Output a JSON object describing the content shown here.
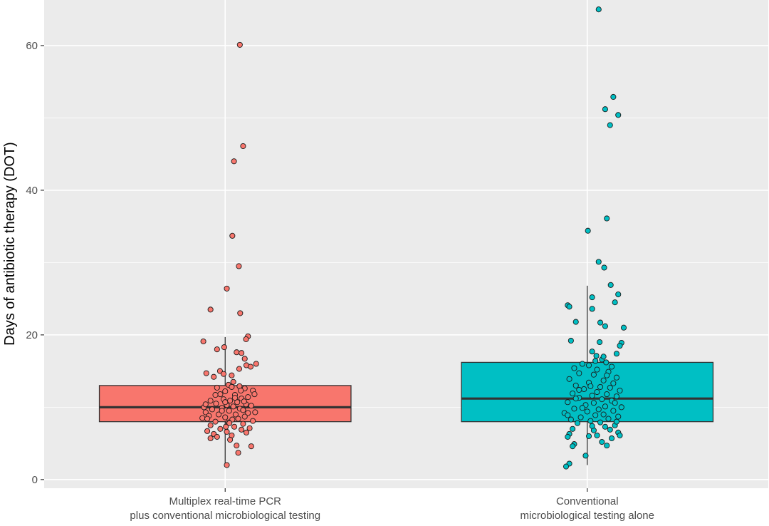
{
  "chart_data": {
    "type": "boxplot",
    "title": "",
    "xlabel": "",
    "ylabel": "Days of antibiotic therapy (DOT)",
    "ylim": [
      -1.2,
      66.3
    ],
    "yticks": [
      0,
      20,
      40,
      60
    ],
    "grid": true,
    "legend": "none",
    "background": "#EBEBEB",
    "groups": [
      {
        "label_lines": [
          "Multiplex real-time PCR",
          "plus conventional microbiological testing"
        ],
        "color": "#F8766D",
        "box": {
          "whisker_low": 2,
          "q1": 8,
          "median": 10,
          "q3": 13,
          "whisker_high": 19.7
        },
        "points": [
          [
            0.45,
            60.1
          ],
          [
            0.55,
            46.1
          ],
          [
            0.27,
            44.0
          ],
          [
            0.22,
            33.7
          ],
          [
            0.42,
            29.5
          ],
          [
            0.05,
            26.4
          ],
          [
            -0.45,
            23.5
          ],
          [
            0.46,
            23.0
          ],
          [
            0.7,
            19.8
          ],
          [
            0.64,
            19.4
          ],
          [
            -0.67,
            19.1
          ],
          [
            -0.25,
            18.0
          ],
          [
            -0.03,
            18.3
          ],
          [
            0.35,
            17.6
          ],
          [
            0.5,
            17.5
          ],
          [
            0.6,
            16.7
          ],
          [
            0.95,
            16.0
          ],
          [
            0.65,
            15.8
          ],
          [
            0.78,
            15.6
          ],
          [
            -0.16,
            15.0
          ],
          [
            0.43,
            15.3
          ],
          [
            -0.05,
            14.6
          ],
          [
            0.2,
            14.4
          ],
          [
            -0.35,
            14.2
          ],
          [
            -0.58,
            14.7
          ],
          [
            0.25,
            13.5
          ],
          [
            0.1,
            13.1
          ],
          [
            -0.25,
            12.7
          ],
          [
            0.44,
            12.9
          ],
          [
            0.6,
            12.6
          ],
          [
            0.85,
            12.3
          ],
          [
            0.0,
            12.2
          ],
          [
            -0.15,
            11.8
          ],
          [
            0.3,
            11.7
          ],
          [
            0.7,
            11.4
          ],
          [
            0.5,
            11.2
          ],
          [
            -0.05,
            11.1
          ],
          [
            0.9,
            11.8
          ],
          [
            -0.45,
            10.9
          ],
          [
            0.15,
            10.9
          ],
          [
            0.37,
            10.7
          ],
          [
            -0.28,
            10.5
          ],
          [
            0.64,
            10.4
          ],
          [
            0.05,
            10.3
          ],
          [
            -0.65,
            10.0
          ],
          [
            0.25,
            10.1
          ],
          [
            0.8,
            10.2
          ],
          [
            -0.1,
            9.9
          ],
          [
            0.45,
            9.8
          ],
          [
            -0.4,
            9.7
          ],
          [
            0.55,
            9.6
          ],
          [
            0.12,
            9.5
          ],
          [
            -0.6,
            9.3
          ],
          [
            0.7,
            9.2
          ],
          [
            -0.2,
            9.0
          ],
          [
            0.32,
            9.0
          ],
          [
            0.92,
            9.3
          ],
          [
            -0.5,
            8.8
          ],
          [
            0.6,
            8.7
          ],
          [
            0.0,
            8.6
          ],
          [
            -0.7,
            8.5
          ],
          [
            0.4,
            8.4
          ],
          [
            0.22,
            8.3
          ],
          [
            0.85,
            8.1
          ],
          [
            -0.3,
            8.0
          ],
          [
            0.1,
            7.9
          ],
          [
            0.55,
            7.7
          ],
          [
            -0.45,
            7.5
          ],
          [
            0.28,
            7.3
          ],
          [
            0.75,
            7.1
          ],
          [
            -0.15,
            7.0
          ],
          [
            0.5,
            6.9
          ],
          [
            -0.55,
            6.7
          ],
          [
            0.05,
            6.6
          ],
          [
            0.65,
            6.5
          ],
          [
            -0.35,
            6.3
          ],
          [
            0.2,
            6.1
          ],
          [
            -0.25,
            5.9
          ],
          [
            -0.45,
            5.7
          ],
          [
            0.15,
            5.5
          ],
          [
            0.8,
            4.6
          ],
          [
            0.4,
            3.7
          ],
          [
            0.35,
            4.7
          ],
          [
            0.05,
            2.0
          ],
          [
            -0.1,
            9.5
          ],
          [
            0.0,
            10.7
          ],
          [
            0.3,
            11.3
          ],
          [
            -0.3,
            11.7
          ],
          [
            0.58,
            10.8
          ],
          [
            0.2,
            12.8
          ],
          [
            -0.55,
            8.4
          ],
          [
            0.02,
            7.3
          ],
          [
            -0.6,
            10.4
          ],
          [
            0.13,
            7.8
          ],
          [
            0.48,
            12.3
          ]
        ]
      },
      {
        "label_lines": [
          "Conventional",
          "microbiological testing alone"
        ],
        "color": "#00BFC4",
        "box": {
          "whisker_low": 2,
          "q1": 8,
          "median": 11.2,
          "q3": 16.2,
          "whisker_high": 26.8
        },
        "points": [
          [
            0.35,
            65.0
          ],
          [
            0.8,
            52.9
          ],
          [
            0.55,
            51.2
          ],
          [
            0.95,
            50.4
          ],
          [
            0.7,
            49.0
          ],
          [
            0.6,
            36.1
          ],
          [
            0.02,
            34.4
          ],
          [
            0.35,
            30.1
          ],
          [
            0.52,
            29.3
          ],
          [
            0.72,
            26.9
          ],
          [
            0.95,
            25.6
          ],
          [
            0.15,
            25.2
          ],
          [
            0.85,
            24.5
          ],
          [
            -0.6,
            24.1
          ],
          [
            -0.55,
            23.9
          ],
          [
            0.15,
            23.6
          ],
          [
            -0.35,
            21.8
          ],
          [
            0.4,
            21.7
          ],
          [
            1.12,
            21.0
          ],
          [
            0.55,
            21.2
          ],
          [
            -0.5,
            19.2
          ],
          [
            0.38,
            19.0
          ],
          [
            1.05,
            18.9
          ],
          [
            1.0,
            18.5
          ],
          [
            0.15,
            17.7
          ],
          [
            0.9,
            17.4
          ],
          [
            0.28,
            17.1
          ],
          [
            0.45,
            16.6
          ],
          [
            0.58,
            16.2
          ],
          [
            -0.15,
            16.0
          ],
          [
            0.05,
            15.8
          ],
          [
            0.75,
            15.6
          ],
          [
            -0.4,
            15.4
          ],
          [
            0.3,
            15.2
          ],
          [
            0.65,
            14.9
          ],
          [
            -0.25,
            14.7
          ],
          [
            0.2,
            14.5
          ],
          [
            0.9,
            14.1
          ],
          [
            -0.55,
            13.9
          ],
          [
            0.5,
            13.7
          ],
          [
            0.05,
            13.4
          ],
          [
            0.8,
            13.3
          ],
          [
            -0.35,
            13.0
          ],
          [
            0.4,
            12.8
          ],
          [
            0.7,
            12.7
          ],
          [
            -0.1,
            12.5
          ],
          [
            1.0,
            12.3
          ],
          [
            0.3,
            12.1
          ],
          [
            -0.45,
            11.9
          ],
          [
            0.6,
            11.8
          ],
          [
            0.15,
            11.6
          ],
          [
            0.9,
            11.5
          ],
          [
            -0.25,
            11.3
          ],
          [
            0.45,
            11.1
          ],
          [
            0.75,
            10.9
          ],
          [
            -0.6,
            10.7
          ],
          [
            0.2,
            10.6
          ],
          [
            -0.05,
            10.3
          ],
          [
            0.55,
            10.1
          ],
          [
            1.05,
            10.0
          ],
          [
            -0.4,
            9.8
          ],
          [
            0.35,
            9.7
          ],
          [
            0.8,
            9.5
          ],
          [
            0.0,
            9.4
          ],
          [
            -0.7,
            9.2
          ],
          [
            0.5,
            9.0
          ],
          [
            0.25,
            8.9
          ],
          [
            0.95,
            8.7
          ],
          [
            -0.2,
            8.6
          ],
          [
            0.65,
            8.4
          ],
          [
            -0.5,
            8.3
          ],
          [
            0.1,
            8.1
          ],
          [
            0.4,
            7.9
          ],
          [
            -0.3,
            7.8
          ],
          [
            0.85,
            7.5
          ],
          [
            0.55,
            7.3
          ],
          [
            -0.45,
            7.0
          ],
          [
            0.7,
            6.9
          ],
          [
            0.2,
            6.8
          ],
          [
            0.95,
            6.5
          ],
          [
            -0.55,
            6.3
          ],
          [
            0.3,
            6.1
          ],
          [
            0.05,
            6.0
          ],
          [
            -0.6,
            5.9
          ],
          [
            0.75,
            5.7
          ],
          [
            1.0,
            6.1
          ],
          [
            0.45,
            5.2
          ],
          [
            -0.4,
            4.9
          ],
          [
            0.6,
            4.7
          ],
          [
            -0.45,
            4.6
          ],
          [
            -0.05,
            3.3
          ],
          [
            -0.55,
            2.2
          ],
          [
            -0.65,
            1.8
          ],
          [
            0.1,
            12.9
          ],
          [
            0.6,
            14.4
          ],
          [
            -0.15,
            9.9
          ],
          [
            0.85,
            10.6
          ],
          [
            -0.35,
            11.2
          ],
          [
            0.25,
            16.4
          ],
          [
            0.9,
            8.0
          ],
          [
            -0.6,
            8.9
          ],
          [
            0.5,
            17.0
          ],
          [
            0.15,
            7.4
          ],
          [
            -0.25,
            12.4
          ]
        ]
      }
    ]
  }
}
